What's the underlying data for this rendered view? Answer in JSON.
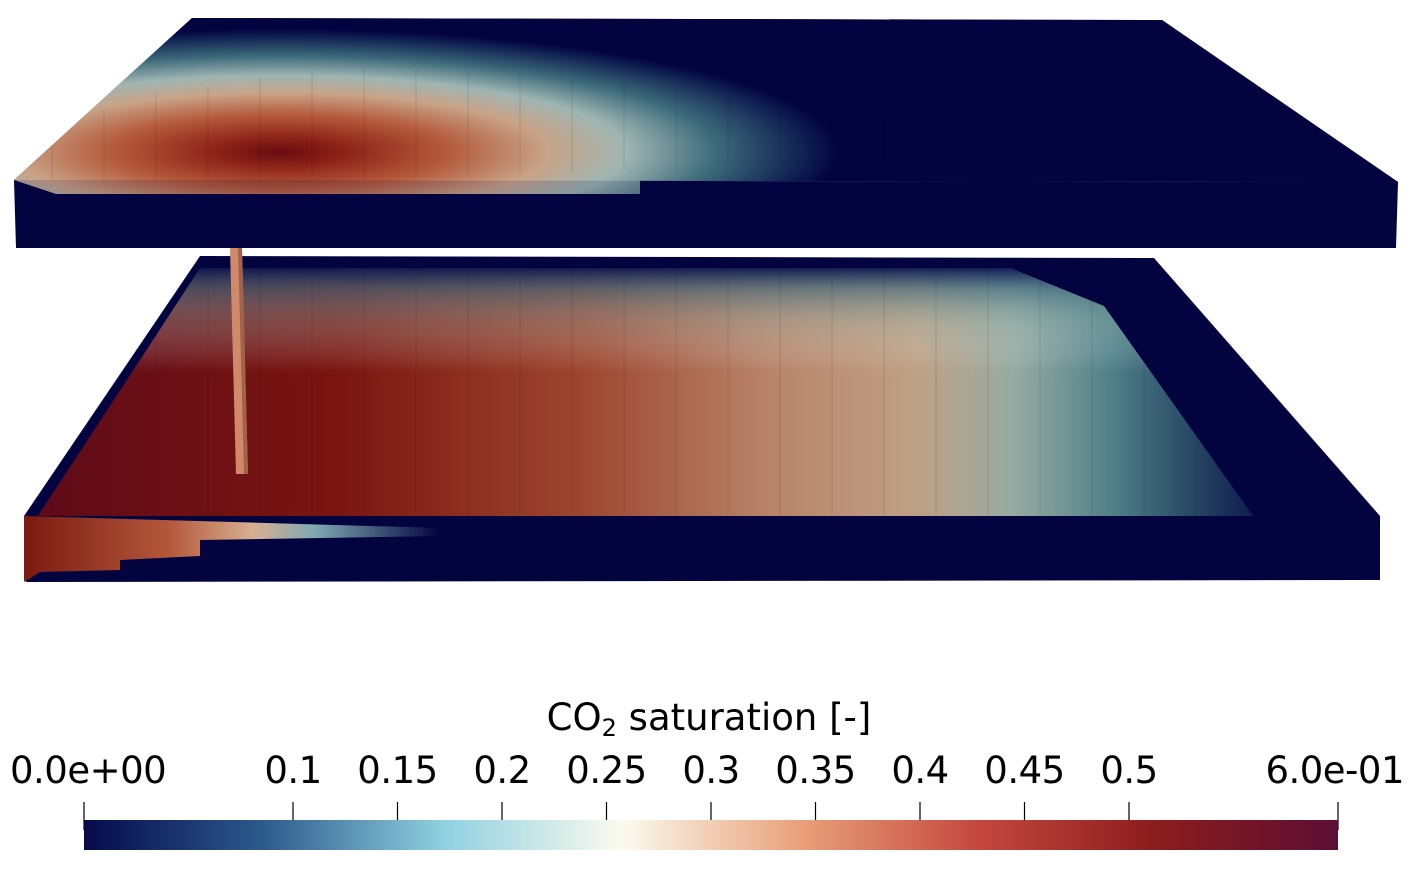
{
  "figure": {
    "quantity_label": "CO",
    "quantity_subscript": "2",
    "quantity_suffix": " saturation [-]"
  },
  "colorbar": {
    "range": [
      0.0,
      0.6
    ],
    "colormap": "reversed blue-white-red",
    "stops": [
      "#050a4b",
      "#2d5a8c",
      "#8fd0e0",
      "#fbfbef",
      "#e9a07a",
      "#c3473e",
      "#8a1c1c",
      "#5c0f35"
    ],
    "ticks": [
      {
        "value": 0.0,
        "label": "0.0e+00"
      },
      {
        "value": 0.1,
        "label": "0.1"
      },
      {
        "value": 0.15,
        "label": "0.15"
      },
      {
        "value": 0.2,
        "label": "0.2"
      },
      {
        "value": 0.25,
        "label": "0.25"
      },
      {
        "value": 0.3,
        "label": "0.3"
      },
      {
        "value": 0.35,
        "label": "0.35"
      },
      {
        "value": 0.4,
        "label": "0.4"
      },
      {
        "value": 0.45,
        "label": "0.45"
      },
      {
        "value": 0.5,
        "label": "0.5"
      },
      {
        "value": 0.6,
        "label": "6.0e-01"
      }
    ]
  },
  "colors": {
    "background_zero": "#02033f",
    "well": "#d08a6a"
  }
}
